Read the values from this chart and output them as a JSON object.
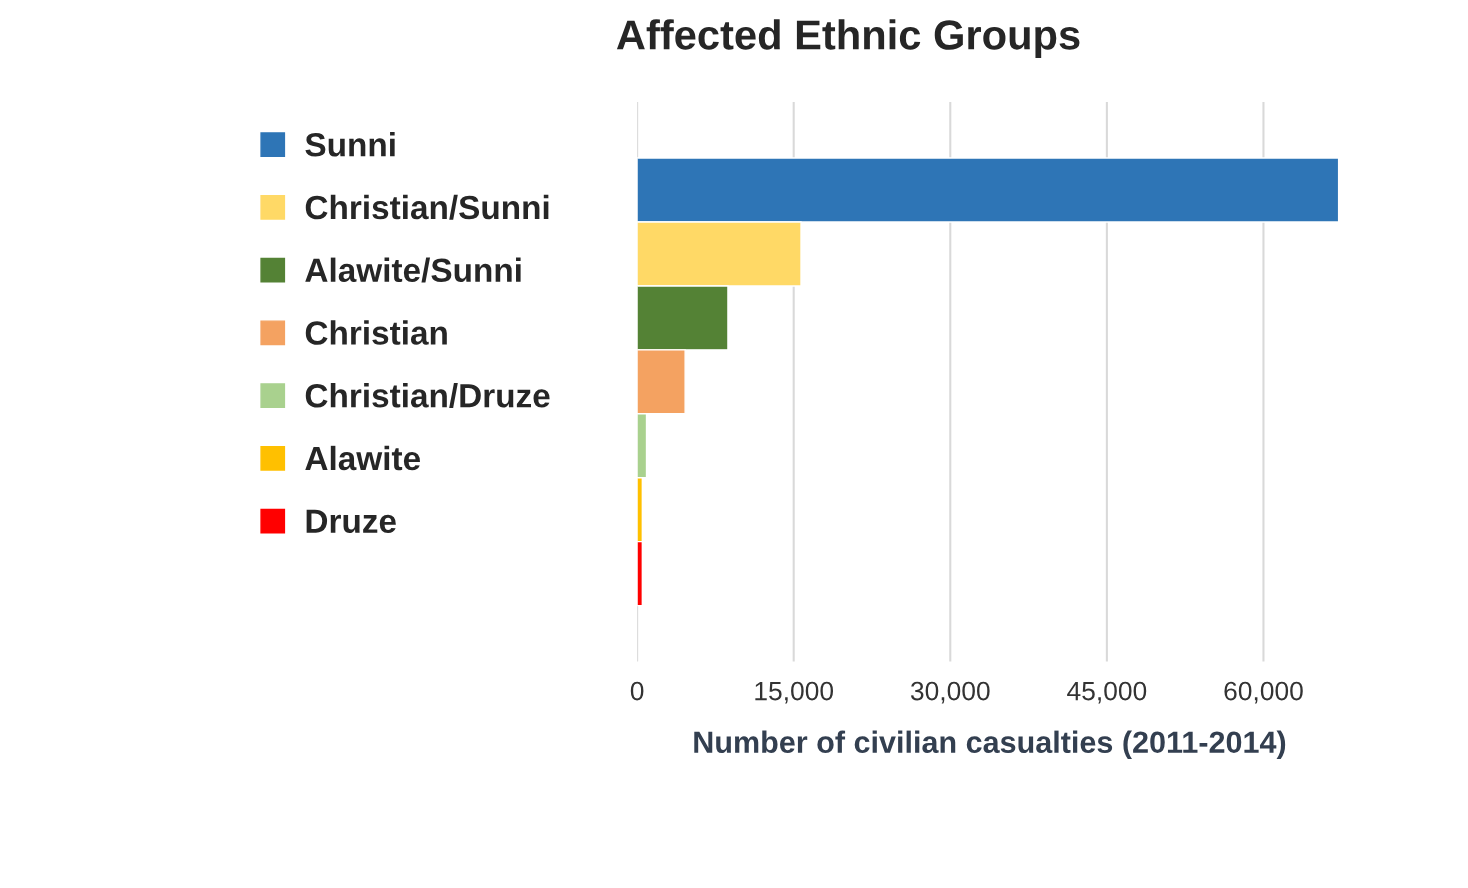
{
  "chart_data": {
    "type": "bar",
    "orientation": "horizontal",
    "title": "Affected Ethnic Groups",
    "xlabel": "Number of civilian casualties (2011-2014)",
    "categories": [
      null
    ],
    "series": [
      {
        "name": "Sunni",
        "color": "#2e75b6",
        "values": [
          67200
        ]
      },
      {
        "name": "Christian/Sunni",
        "color": "#ffd966",
        "values": [
          15700
        ]
      },
      {
        "name": "Alawite/Sunni",
        "color": "#548235",
        "values": [
          8700
        ]
      },
      {
        "name": "Christian",
        "color": "#f4a261",
        "values": [
          4600
        ]
      },
      {
        "name": "Christian/Druze",
        "color": "#a9d18e",
        "values": [
          900
        ]
      },
      {
        "name": "Alawite",
        "color": "#ffc000",
        "values": [
          500
        ]
      },
      {
        "name": "Druze",
        "color": "#ff0000",
        "values": [
          500
        ]
      }
    ],
    "xlim": [
      0,
      67500
    ],
    "xticks": [
      0,
      {
        "value": 15000,
        "label": "15,000"
      },
      {
        "value": 30000,
        "label": "30,000"
      },
      {
        "value": 45000,
        "label": "45,000"
      },
      {
        "value": 60000,
        "label": "60,000"
      }
    ],
    "grid": "x",
    "legend": "left",
    "tick_labels": "x"
  }
}
